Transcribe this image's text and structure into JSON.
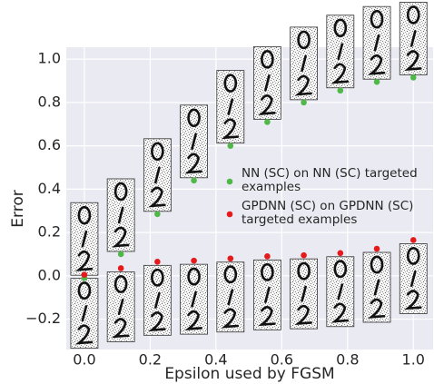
{
  "chart_data": {
    "type": "scatter",
    "x_label": "Epsilon used by FGSM",
    "y_label": "Error",
    "xlim": [
      -0.055,
      1.06
    ],
    "ylim": [
      -0.34,
      1.055
    ],
    "xticks": [
      {
        "value": 0,
        "label": "0.0"
      },
      0.2,
      0.4,
      0.6,
      0.8,
      {
        "value": 1,
        "label": "1.0"
      }
    ],
    "yticks": [
      {
        "value": -0.2,
        "label": "−0.2"
      },
      {
        "value": 0,
        "label": "0.0"
      },
      0.2,
      0.4,
      0.6,
      0.8,
      {
        "value": 1,
        "label": "1.0"
      }
    ],
    "grid": true,
    "x": [
      0,
      0.111,
      0.222,
      0.333,
      0.444,
      0.556,
      0.667,
      0.778,
      0.889,
      1.0
    ],
    "series": [
      {
        "name": "NN (SC) on NN (SC) targeted examples",
        "color": "#4fb848",
        "values": [
          -0.01,
          0.1,
          0.285,
          0.44,
          0.6,
          0.71,
          0.8,
          0.855,
          0.895,
          0.915
        ]
      },
      {
        "name": "GPDNN (SC) on GPDNN (SC) targeted examples",
        "color": "#e41a1c",
        "values": [
          0.005,
          0.035,
          0.065,
          0.07,
          0.08,
          0.09,
          0.095,
          0.105,
          0.125,
          0.165
        ]
      }
    ]
  }
}
